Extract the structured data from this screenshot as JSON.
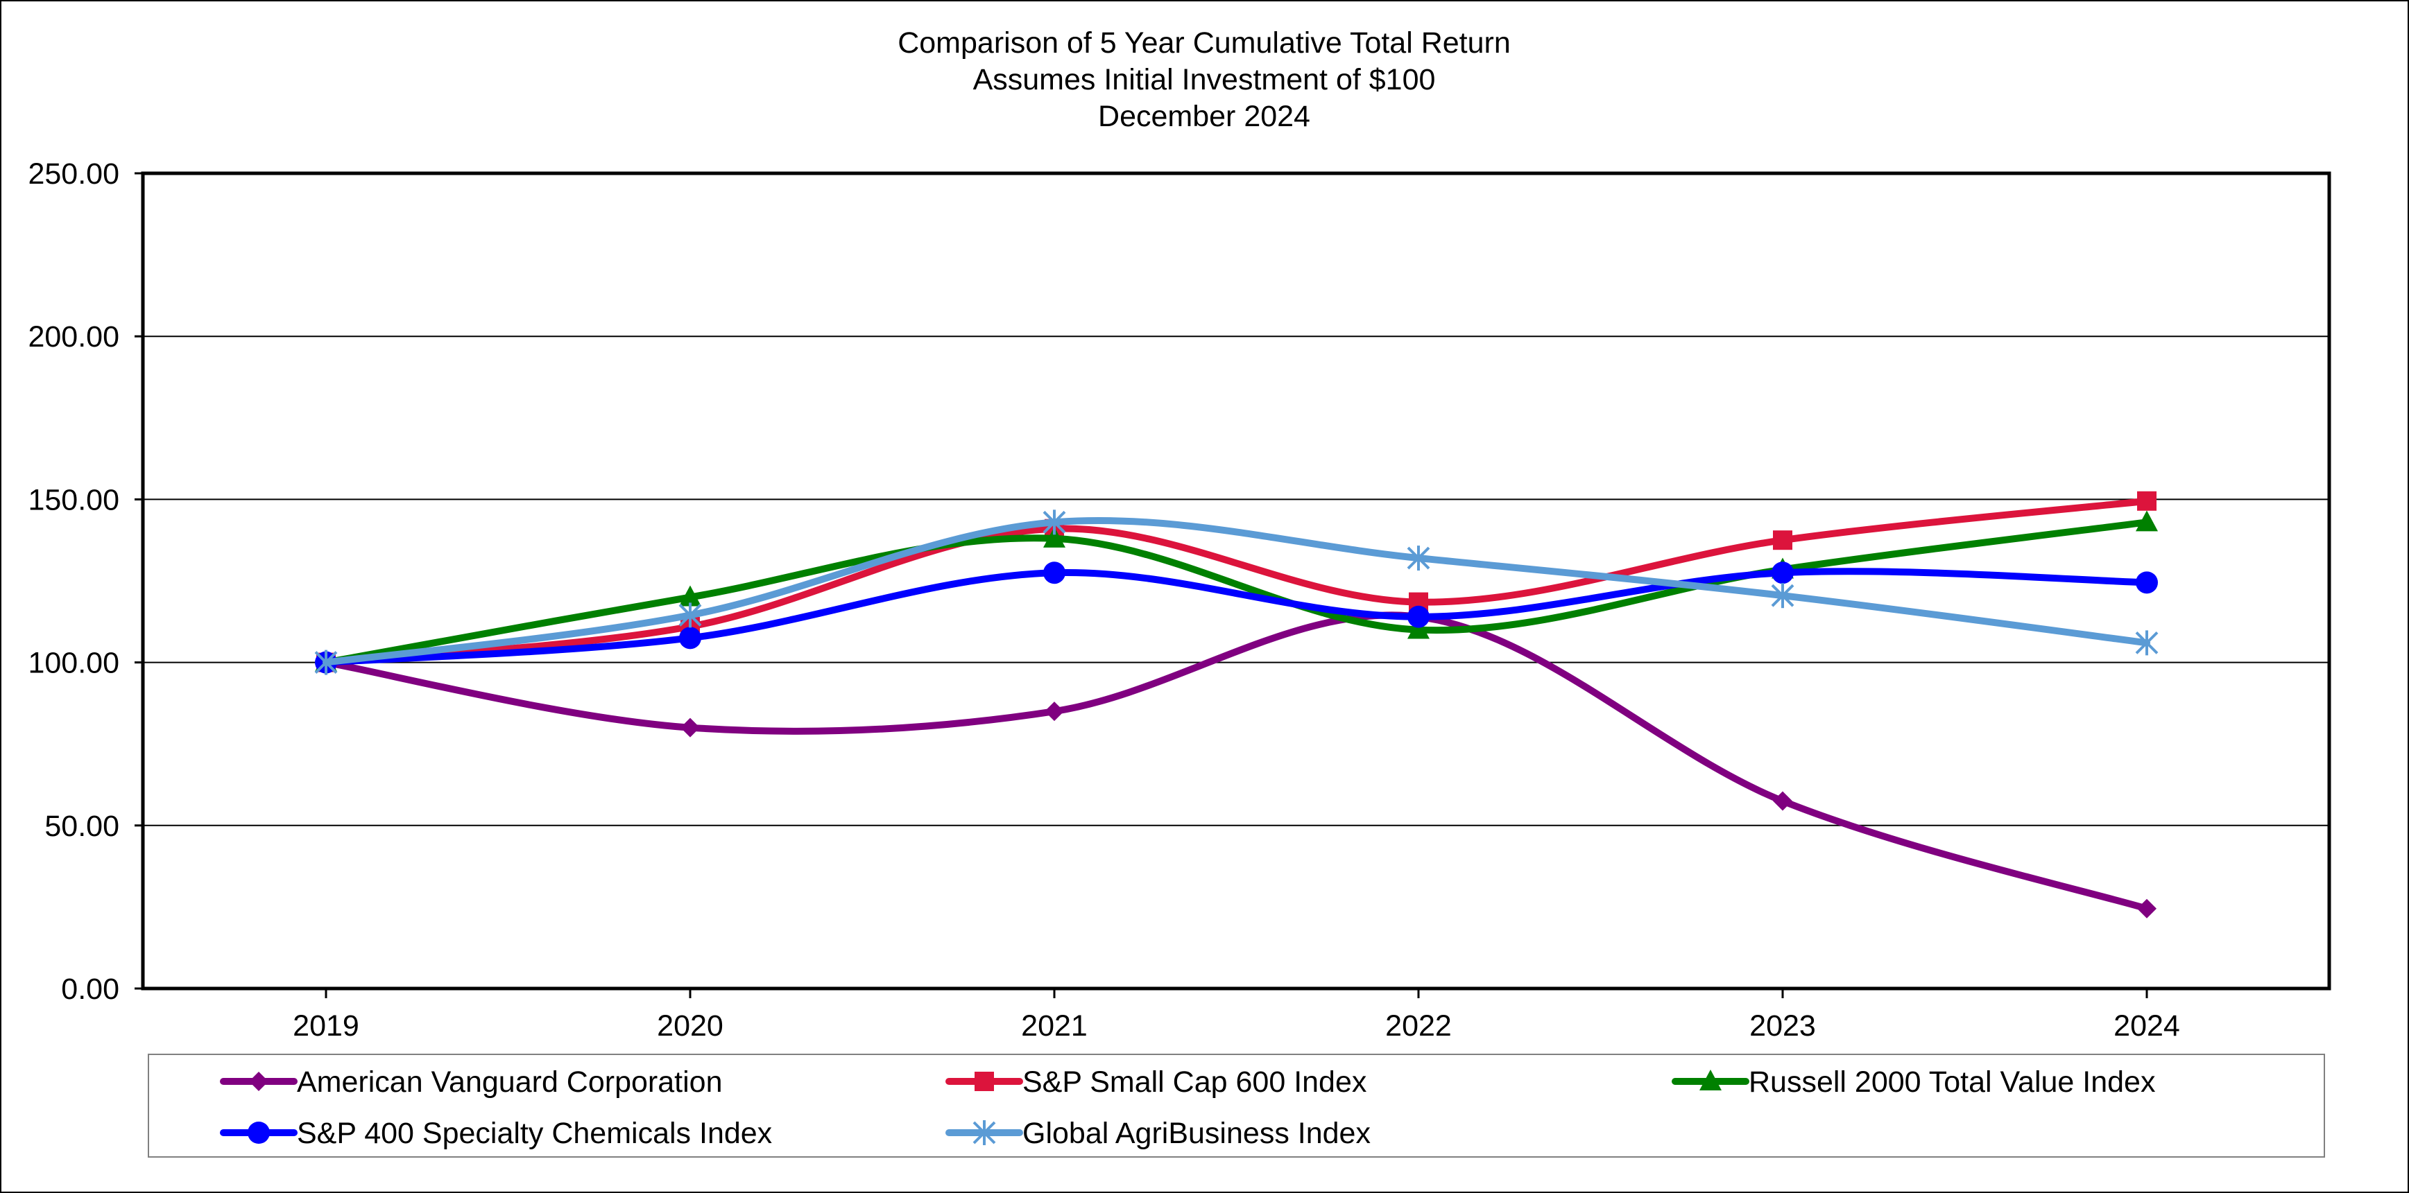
{
  "chart_data": {
    "type": "line",
    "title_lines": [
      "Comparison of 5 Year Cumulative Total Return",
      "Assumes Initial Investment of $100",
      "December 2024"
    ],
    "xlabel": "",
    "ylabel": "",
    "categories": [
      "2019",
      "2020",
      "2021",
      "2022",
      "2023",
      "2024"
    ],
    "ylim": [
      0,
      250
    ],
    "yticks": [
      0,
      50,
      100,
      150,
      200,
      250
    ],
    "ytick_labels": [
      "0.00",
      "50.00",
      "100.00",
      "150.00",
      "200.00",
      "250.00"
    ],
    "grid": "horizontal",
    "legend_position": "bottom",
    "series": [
      {
        "name": "American Vanguard Corporation",
        "values": [
          100.0,
          80.0,
          85.0,
          114.0,
          57.5,
          24.5
        ],
        "color": "#800080",
        "marker": "diamond"
      },
      {
        "name": "S&P Small Cap 600 Index",
        "values": [
          100.0,
          111.0,
          141.0,
          118.5,
          137.5,
          149.5
        ],
        "color": "#dc143c",
        "marker": "square"
      },
      {
        "name": "Russell 2000 Total Value Index",
        "values": [
          100.0,
          120.0,
          138.0,
          110.0,
          128.5,
          143.0
        ],
        "color": "#008000",
        "marker": "triangle"
      },
      {
        "name": "S&P 400 Specialty Chemicals Index",
        "values": [
          100.0,
          107.5,
          127.5,
          114.0,
          127.5,
          124.5
        ],
        "color": "#0000ff",
        "marker": "circle"
      },
      {
        "name": "Global AgriBusiness Index",
        "values": [
          100.0,
          114.5,
          143.0,
          132.0,
          120.5,
          106.0
        ],
        "color": "#5b9bd5",
        "marker": "star"
      }
    ]
  }
}
